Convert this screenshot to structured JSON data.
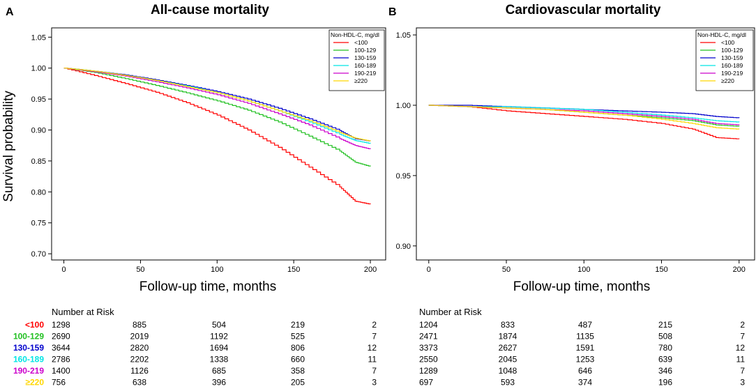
{
  "colors": {
    "lt100": "#ff0000",
    "r100_129": "#22c022",
    "r130_159": "#0000cc",
    "r160_189": "#00e5e5",
    "r190_219": "#cc00cc",
    "ge220": "#ffd700"
  },
  "legend": {
    "title": "Non-HDL-C, mg/dl",
    "labels": [
      "<100",
      "100-129",
      "130-159",
      "160-189",
      "190-219",
      "≥220"
    ]
  },
  "risk_table": {
    "header": "Number at Risk",
    "group_labels": [
      "<100",
      "100-129",
      "130-159",
      "160-189",
      "190-219",
      "≥220"
    ],
    "panel_a": [
      [
        "1298",
        "885",
        "504",
        "219",
        "2"
      ],
      [
        "2690",
        "2019",
        "1192",
        "525",
        "7"
      ],
      [
        "3644",
        "2820",
        "1694",
        "806",
        "12"
      ],
      [
        "2786",
        "2202",
        "1338",
        "660",
        "11"
      ],
      [
        "1400",
        "1126",
        "685",
        "358",
        "7"
      ],
      [
        "756",
        "638",
        "396",
        "205",
        "3"
      ]
    ],
    "panel_b": [
      [
        "1204",
        "833",
        "487",
        "215",
        "2"
      ],
      [
        "2471",
        "1874",
        "1135",
        "508",
        "7"
      ],
      [
        "3373",
        "2627",
        "1591",
        "780",
        "12"
      ],
      [
        "2550",
        "2045",
        "1253",
        "639",
        "11"
      ],
      [
        "1289",
        "1048",
        "646",
        "346",
        "7"
      ],
      [
        "697",
        "593",
        "374",
        "196",
        "3"
      ]
    ]
  },
  "chart_data": [
    {
      "type": "line",
      "panel_letter": "A",
      "title": "All-cause mortality",
      "xlabel": "Follow-up time, months",
      "ylabel": "Survival probability",
      "xlim": [
        -8,
        210
      ],
      "ylim": [
        0.69,
        1.065
      ],
      "xticks": [
        0,
        50,
        100,
        150,
        200
      ],
      "yticks": [
        0.7,
        0.75,
        0.8,
        0.85,
        0.9,
        0.95,
        1.0,
        1.05
      ],
      "series": [
        {
          "name": "<100",
          "x": [
            0,
            20,
            40,
            60,
            80,
            100,
            120,
            140,
            160,
            180,
            190,
            200
          ],
          "y": [
            1.0,
            0.988,
            0.975,
            0.961,
            0.944,
            0.924,
            0.9,
            0.872,
            0.84,
            0.808,
            0.785,
            0.78
          ]
        },
        {
          "name": "100-129",
          "x": [
            0,
            20,
            40,
            60,
            80,
            100,
            120,
            140,
            160,
            180,
            190,
            200
          ],
          "y": [
            1.0,
            0.993,
            0.983,
            0.972,
            0.96,
            0.947,
            0.932,
            0.913,
            0.89,
            0.866,
            0.848,
            0.841
          ]
        },
        {
          "name": "130-159",
          "x": [
            0,
            20,
            40,
            60,
            80,
            100,
            120,
            140,
            160,
            180,
            190,
            200
          ],
          "y": [
            1.0,
            0.995,
            0.989,
            0.981,
            0.972,
            0.962,
            0.95,
            0.935,
            0.918,
            0.899,
            0.886,
            0.882
          ]
        },
        {
          "name": "160-189",
          "x": [
            0,
            20,
            40,
            60,
            80,
            100,
            120,
            140,
            160,
            180,
            190,
            200
          ],
          "y": [
            1.0,
            0.995,
            0.988,
            0.98,
            0.971,
            0.96,
            0.947,
            0.931,
            0.913,
            0.893,
            0.883,
            0.878
          ]
        },
        {
          "name": "190-219",
          "x": [
            0,
            20,
            40,
            60,
            80,
            100,
            120,
            140,
            160,
            180,
            190,
            200
          ],
          "y": [
            1.0,
            0.994,
            0.987,
            0.978,
            0.968,
            0.957,
            0.943,
            0.926,
            0.908,
            0.886,
            0.875,
            0.869
          ]
        },
        {
          "name": "≥220",
          "x": [
            0,
            20,
            40,
            60,
            80,
            100,
            120,
            140,
            160,
            180,
            190,
            200
          ],
          "y": [
            1.0,
            0.995,
            0.988,
            0.98,
            0.97,
            0.96,
            0.947,
            0.931,
            0.915,
            0.896,
            0.887,
            0.882
          ]
        }
      ]
    },
    {
      "type": "line",
      "panel_letter": "B",
      "title": "Cardiovascular mortality",
      "xlabel": "Follow-up time, months",
      "ylabel": "",
      "xlim": [
        -8,
        210
      ],
      "ylim": [
        0.89,
        1.055
      ],
      "xticks": [
        0,
        50,
        100,
        150,
        200
      ],
      "yticks": [
        0.9,
        0.95,
        1.0,
        1.05
      ],
      "series": [
        {
          "name": "<100",
          "x": [
            0,
            25,
            50,
            75,
            100,
            125,
            150,
            170,
            185,
            200
          ],
          "y": [
            1.0,
            0.999,
            0.996,
            0.994,
            0.992,
            0.99,
            0.987,
            0.983,
            0.977,
            0.976
          ]
        },
        {
          "name": "100-129",
          "x": [
            0,
            25,
            50,
            75,
            100,
            125,
            150,
            170,
            185,
            200
          ],
          "y": [
            1.0,
            0.999,
            0.998,
            0.997,
            0.995,
            0.993,
            0.991,
            0.989,
            0.986,
            0.985
          ]
        },
        {
          "name": "130-159",
          "x": [
            0,
            25,
            50,
            75,
            100,
            125,
            150,
            170,
            185,
            200
          ],
          "y": [
            1.0,
            1.0,
            0.999,
            0.998,
            0.997,
            0.996,
            0.995,
            0.994,
            0.992,
            0.991
          ]
        },
        {
          "name": "160-189",
          "x": [
            0,
            25,
            50,
            75,
            100,
            125,
            150,
            170,
            185,
            200
          ],
          "y": [
            1.0,
            0.999,
            0.999,
            0.998,
            0.997,
            0.995,
            0.993,
            0.991,
            0.989,
            0.988
          ]
        },
        {
          "name": "190-219",
          "x": [
            0,
            25,
            50,
            75,
            100,
            125,
            150,
            170,
            185,
            200
          ],
          "y": [
            1.0,
            0.999,
            0.998,
            0.997,
            0.996,
            0.994,
            0.992,
            0.99,
            0.987,
            0.986
          ]
        },
        {
          "name": "≥220",
          "x": [
            0,
            25,
            50,
            75,
            100,
            125,
            150,
            170,
            185,
            200
          ],
          "y": [
            1.0,
            0.999,
            0.998,
            0.997,
            0.995,
            0.993,
            0.99,
            0.987,
            0.984,
            0.983
          ]
        }
      ]
    }
  ]
}
